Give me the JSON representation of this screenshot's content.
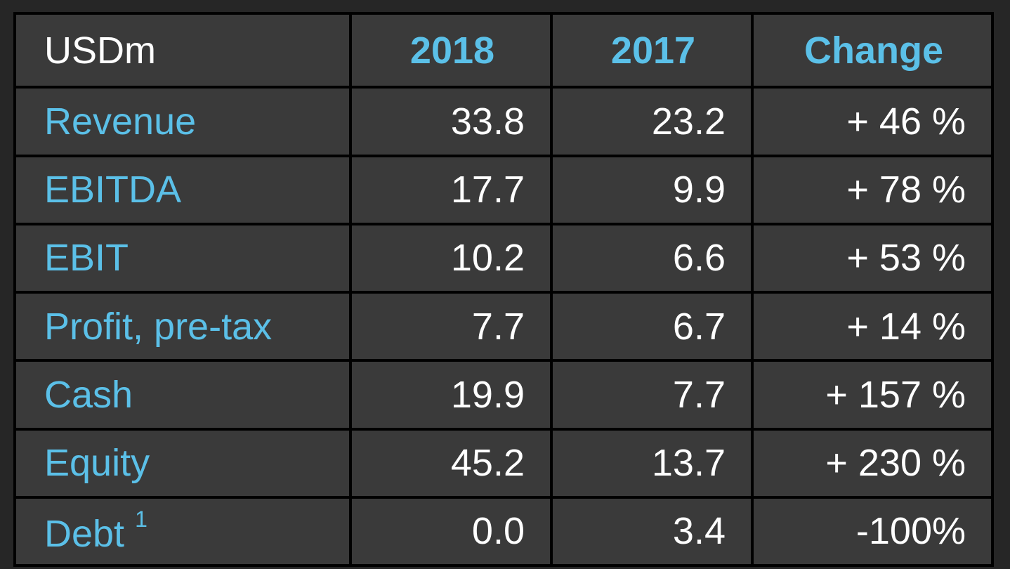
{
  "table": {
    "header": {
      "unit": "USDm",
      "col_2018": "2018",
      "col_2017": "2017",
      "col_change": "Change"
    },
    "rows": [
      {
        "label": "Revenue",
        "v2018": "33.8",
        "v2017": "23.2",
        "change": "+ 46 %"
      },
      {
        "label": "EBITDA",
        "v2018": "17.7",
        "v2017": "9.9",
        "change": "+ 78 %"
      },
      {
        "label": "EBIT",
        "v2018": "10.2",
        "v2017": "6.6",
        "change": "+ 53 %"
      },
      {
        "label": "Profit, pre-tax",
        "v2018": "7.7",
        "v2017": "6.7",
        "change": "+ 14 %"
      },
      {
        "label": "Cash",
        "v2018": "19.9",
        "v2017": "7.7",
        "change": "+ 157 %"
      },
      {
        "label": "Equity",
        "v2018": "45.2",
        "v2017": "13.7",
        "change": "+ 230 %"
      },
      {
        "label": "Debt",
        "footnote": "1",
        "v2018": "0.0",
        "v2017": "3.4",
        "change": "-100%"
      }
    ]
  },
  "colors": {
    "background": "#262626",
    "cell": "#3a3a3a",
    "accent": "#5bc0e8",
    "text": "#ffffff"
  }
}
